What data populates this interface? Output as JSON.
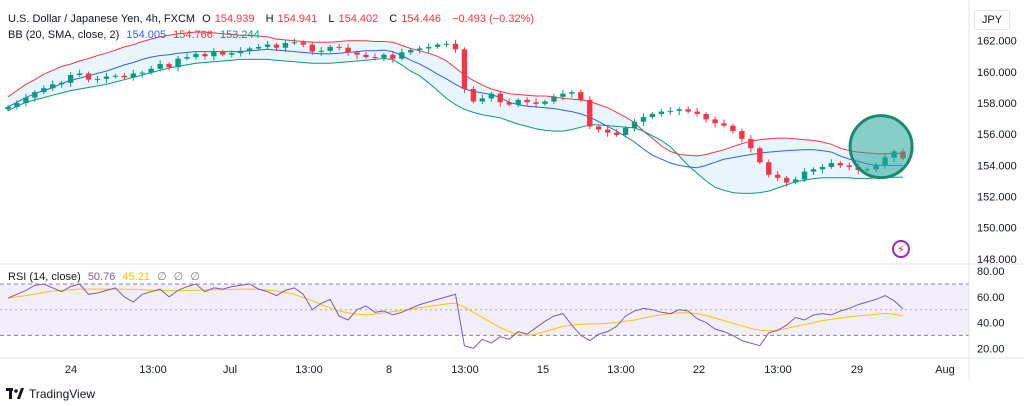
{
  "legend": {
    "symbol": "U.S. Dollar / Japanese Yen, 4h, FXCM",
    "open_label": "O",
    "open": "154.939",
    "high_label": "H",
    "high": "154.941",
    "low_label": "L",
    "low": "154.402",
    "close_label": "C",
    "close": "154.446",
    "change": "−0.493 (−0.32%)",
    "bb_label": "BB (20, SMA, close, 2)",
    "bb_basis": "154.005",
    "bb_upper": "154.766",
    "bb_lower": "153.244",
    "rsi_label": "RSI (14, close)",
    "rsi_value": "50.76",
    "rsi_ma": "45.21",
    "rsi_extra": [
      "∅",
      "∅",
      "∅"
    ]
  },
  "currency": "JPY",
  "brand": "TradingView",
  "colors": {
    "up": "#089981",
    "down": "#f23645",
    "bb_basis": "#2962ff",
    "bb_upper": "#f23645",
    "bb_lower": "#089981",
    "bb_fill": "#e3f2fd",
    "rsi": "#7e57c2",
    "rsi_ma": "#f7c600",
    "rsi_band": "#ede7f6",
    "highlight": "#26a69a"
  },
  "chart_data": [
    {
      "type": "candlestick",
      "title": "U.S. Dollar / Japanese Yen, 4h, FXCM",
      "y_ticks": [
        "162.000",
        "160.000",
        "158.000",
        "156.000",
        "154.000",
        "152.000",
        "150.000",
        "148.000"
      ],
      "x_ticks": [
        "24",
        "13:00",
        "Jul",
        "13:00",
        "8",
        "13:00",
        "15",
        "13:00",
        "22",
        "13:00",
        "29",
        "Aug"
      ],
      "ylim": [
        147.8,
        163.2
      ],
      "grid": false,
      "series": [
        {
          "name": "close",
          "values": [
            157.75,
            158.0,
            158.35,
            158.7,
            158.95,
            159.2,
            159.3,
            159.8,
            159.9,
            159.5,
            159.55,
            159.7,
            159.75,
            159.65,
            159.9,
            159.95,
            160.2,
            160.5,
            160.3,
            160.85,
            160.95,
            161.15,
            161.0,
            161.3,
            161.1,
            161.2,
            161.35,
            161.5,
            161.6,
            161.75,
            161.55,
            161.85,
            161.9,
            161.75,
            161.3,
            161.35,
            161.6,
            161.55,
            161.25,
            161.1,
            160.95,
            160.9,
            161.1,
            160.85,
            161.25,
            161.4,
            161.5,
            161.6,
            161.75,
            161.8,
            161.45,
            158.9,
            158.1,
            158.3,
            158.6,
            158.05,
            157.9,
            158.2,
            158.05,
            157.95,
            158.1,
            158.4,
            158.6,
            158.7,
            158.2,
            156.5,
            156.3,
            156.1,
            155.95,
            156.4,
            156.8,
            157.1,
            157.3,
            157.45,
            157.5,
            157.6,
            157.45,
            157.3,
            156.95,
            156.7,
            156.55,
            156.2,
            155.7,
            155.1,
            154.2,
            153.4,
            153.2,
            152.9,
            153.1,
            153.6,
            153.75,
            153.9,
            154.15,
            154.0,
            153.9,
            153.7,
            153.75,
            154.0,
            154.5,
            154.9,
            154.45
          ]
        },
        {
          "name": "BB (20, SMA, close, 2) basis",
          "values": [
            157.75,
            158.05,
            158.35,
            158.6,
            158.8,
            159.0,
            159.25,
            159.45,
            159.6,
            159.75,
            159.9,
            160.05,
            160.25,
            160.45,
            160.6,
            160.8,
            160.95,
            161.05,
            161.1,
            161.2,
            161.25,
            161.3,
            161.3,
            161.3,
            161.3,
            161.3,
            161.3,
            161.35,
            161.4,
            161.45,
            161.4,
            161.35,
            161.3,
            161.25,
            161.2,
            161.15,
            161.15,
            161.2,
            161.25,
            161.3,
            161.35,
            161.35,
            161.4,
            161.3,
            161.05,
            160.75,
            160.5,
            160.2,
            159.85,
            159.55,
            159.2,
            158.9,
            158.75,
            158.65,
            158.55,
            158.35,
            158.05,
            157.9,
            157.8,
            157.75,
            157.7,
            157.65,
            157.55,
            157.45,
            157.3,
            157.1,
            156.8,
            156.5,
            156.2,
            155.85,
            155.5,
            155.05,
            154.65,
            154.4,
            154.15,
            154.0,
            153.9,
            153.85,
            154.0,
            154.2,
            154.4,
            154.5,
            154.6,
            154.7,
            154.78,
            154.85,
            154.9,
            154.95,
            154.98,
            155.0,
            155.0,
            154.95,
            154.85,
            154.6,
            154.4,
            154.25,
            154.1,
            154.0,
            154.0,
            154.0,
            154.005
          ]
        },
        {
          "name": "BB (20, SMA, close, 2) upper",
          "values": [
            158.4,
            158.8,
            159.2,
            159.5,
            159.85,
            160.1,
            160.35,
            160.5,
            160.7,
            160.85,
            161.05,
            161.2,
            161.4,
            161.6,
            161.75,
            161.95,
            162.1,
            162.25,
            162.35,
            162.45,
            162.5,
            162.55,
            162.55,
            162.5,
            162.45,
            162.4,
            162.35,
            162.35,
            162.3,
            162.25,
            162.1,
            162.05,
            162.0,
            161.95,
            161.9,
            161.9,
            161.9,
            161.95,
            162.0,
            162.0,
            162.0,
            161.95,
            161.95,
            161.9,
            161.7,
            161.5,
            161.35,
            161.2,
            161.0,
            160.7,
            160.25,
            159.8,
            159.45,
            159.15,
            158.9,
            158.75,
            158.6,
            158.55,
            158.5,
            158.45,
            158.45,
            158.4,
            158.3,
            158.25,
            158.2,
            158.1,
            157.9,
            157.7,
            157.4,
            157.1,
            156.75,
            156.2,
            155.75,
            155.25,
            154.9,
            154.7,
            154.65,
            154.6,
            154.7,
            154.85,
            155.0,
            155.2,
            155.4,
            155.55,
            155.65,
            155.7,
            155.75,
            155.75,
            155.7,
            155.65,
            155.6,
            155.5,
            155.35,
            155.1,
            154.95,
            154.85,
            154.8,
            154.75,
            154.75,
            154.76,
            154.766
          ]
        },
        {
          "name": "BB (20, SMA, close, 2) lower",
          "values": [
            157.5,
            157.8,
            158.05,
            158.2,
            158.35,
            158.5,
            158.65,
            158.8,
            158.9,
            159.0,
            159.1,
            159.2,
            159.35,
            159.5,
            159.65,
            159.8,
            159.95,
            160.1,
            160.25,
            160.35,
            160.45,
            160.55,
            160.6,
            160.65,
            160.7,
            160.75,
            160.8,
            160.8,
            160.8,
            160.8,
            160.75,
            160.7,
            160.65,
            160.6,
            160.55,
            160.55,
            160.55,
            160.6,
            160.65,
            160.7,
            160.75,
            160.8,
            160.85,
            160.8,
            160.45,
            160.05,
            159.75,
            159.3,
            158.8,
            158.3,
            157.9,
            157.6,
            157.4,
            157.25,
            157.15,
            157.05,
            156.85,
            156.65,
            156.5,
            156.35,
            156.25,
            156.2,
            156.2,
            156.3,
            156.45,
            156.6,
            156.6,
            156.55,
            156.5,
            156.45,
            156.4,
            156.2,
            155.9,
            155.6,
            155.2,
            154.6,
            154.0,
            153.5,
            153.0,
            152.6,
            152.4,
            152.25,
            152.2,
            152.2,
            152.25,
            152.35,
            152.55,
            152.75,
            152.95,
            153.05,
            153.15,
            153.2,
            153.2,
            153.2,
            153.2,
            153.15,
            153.15,
            153.2,
            153.22,
            153.24,
            153.244
          ]
        }
      ]
    },
    {
      "type": "line",
      "title": "RSI (14, close)",
      "y_ticks": [
        "80.00",
        "60.00",
        "40.00",
        "20.00"
      ],
      "ylim": [
        14,
        84
      ],
      "bands": [
        30,
        50,
        70
      ],
      "grid": false,
      "series": [
        {
          "name": "RSI",
          "values": [
            59,
            62,
            65,
            69,
            70,
            67,
            64,
            68,
            70,
            62,
            63,
            65,
            67,
            60,
            56,
            62,
            64,
            66,
            60,
            65,
            68,
            70,
            64,
            67,
            66,
            68,
            69,
            70,
            66,
            64,
            61,
            65,
            67,
            62,
            50,
            55,
            58,
            45,
            42,
            50,
            53,
            48,
            49,
            46,
            48,
            51,
            54,
            56,
            58,
            60,
            62,
            22,
            20,
            27,
            24,
            29,
            27,
            33,
            31,
            36,
            41,
            45,
            47,
            38,
            30,
            26,
            31,
            33,
            37,
            45,
            49,
            51,
            50,
            48,
            47,
            50,
            49,
            43,
            40,
            35,
            33,
            30,
            26,
            24,
            22,
            32,
            34,
            38,
            44,
            42,
            46,
            47,
            46,
            49,
            51,
            54,
            56,
            58,
            61,
            57,
            50.76
          ]
        },
        {
          "name": "RSI-based MA",
          "values": [
            59,
            60,
            61,
            62,
            63.5,
            64.5,
            65,
            65.5,
            66,
            66,
            66,
            66,
            66,
            66,
            65.8,
            65.5,
            65.2,
            65,
            64.8,
            64.8,
            65,
            65.2,
            65.3,
            65.5,
            65.6,
            65.8,
            66,
            66,
            65.8,
            65.3,
            64.5,
            63.5,
            62,
            59.5,
            57,
            54,
            51.5,
            49,
            47.5,
            46.5,
            46,
            46.5,
            47.5,
            48.5,
            49.5,
            50.5,
            51.5,
            52.5,
            53.5,
            54.5,
            55,
            52,
            48,
            44,
            40,
            36,
            33,
            31,
            30,
            31,
            33,
            35,
            37,
            38,
            38.5,
            39,
            39,
            39.5,
            40,
            41,
            42,
            43.5,
            45,
            46,
            47,
            47.5,
            47.5,
            47,
            45.5,
            43.5,
            41.5,
            39.5,
            37.5,
            35.5,
            34,
            33.5,
            34,
            35.5,
            37,
            38.5,
            40,
            41.5,
            42.5,
            43.5,
            44.5,
            45.2,
            45.8,
            46.5,
            47.3,
            46.5,
            45.21
          ]
        }
      ]
    }
  ]
}
